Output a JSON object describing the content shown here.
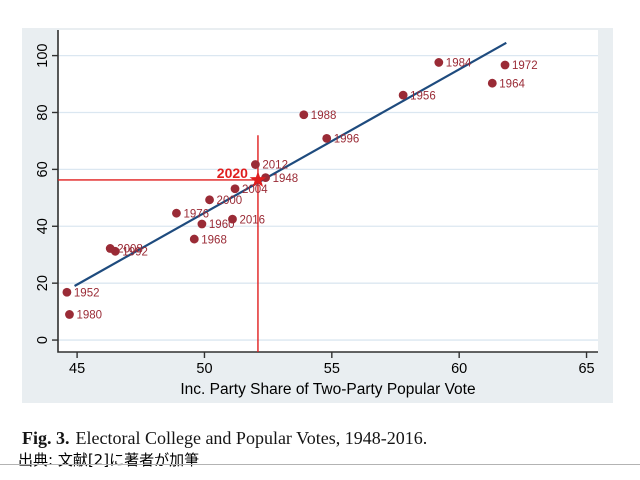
{
  "chart_data": {
    "type": "scatter",
    "title": "",
    "xlabel": "Inc. Party Share of Two-Party Popular Vote",
    "ylabel": "",
    "xlim": [
      44.25,
      65.45
    ],
    "ylim": [
      -4.2,
      109.0
    ],
    "xticks": [
      45,
      50,
      55,
      60,
      65
    ],
    "yticks": [
      0,
      20,
      40,
      60,
      80,
      100
    ],
    "grid": "horizontal-only",
    "legend": "none",
    "points": [
      {
        "label": "1948",
        "x": 52.4,
        "y": 57.1
      },
      {
        "label": "1952",
        "x": 44.6,
        "y": 16.8
      },
      {
        "label": "1956",
        "x": 57.8,
        "y": 86.1
      },
      {
        "label": "1960",
        "x": 49.9,
        "y": 40.8
      },
      {
        "label": "1964",
        "x": 61.3,
        "y": 90.3
      },
      {
        "label": "1968",
        "x": 49.6,
        "y": 35.5
      },
      {
        "label": "1972",
        "x": 61.8,
        "y": 96.7
      },
      {
        "label": "1976",
        "x": 48.9,
        "y": 44.6
      },
      {
        "label": "1980",
        "x": 44.7,
        "y": 9.0
      },
      {
        "label": "1984",
        "x": 59.2,
        "y": 97.6
      },
      {
        "label": "1988",
        "x": 53.9,
        "y": 79.2
      },
      {
        "label": "1992",
        "x": 46.5,
        "y": 31.2
      },
      {
        "label": "1996",
        "x": 54.8,
        "y": 70.9
      },
      {
        "label": "2000",
        "x": 50.2,
        "y": 49.3
      },
      {
        "label": "2004",
        "x": 51.2,
        "y": 53.2
      },
      {
        "label": "2008",
        "x": 46.3,
        "y": 32.2
      },
      {
        "label": "2012",
        "x": 52.0,
        "y": 61.7
      },
      {
        "label": "2016",
        "x": 51.1,
        "y": 42.5
      }
    ],
    "fit_line": {
      "x1": 44.9,
      "y1": 19.0,
      "x2": 61.85,
      "y2": 104.5
    },
    "highlight": {
      "label": "2020",
      "x": 52.1,
      "y": 56.3,
      "marker": "star",
      "vline_top": 72.0,
      "vline_bottom": -4.2,
      "hline_left": 44.25
    },
    "colors": {
      "point": "#9a2b36",
      "point_label": "#9a2b36",
      "fit_line": "#1e4b7e",
      "highlight": "#e01f1f",
      "grid": "#dbe7f1",
      "axis": "#303030",
      "figure_bg": "#e9eef1",
      "plot_bg": "#ffffff",
      "tick_label": "#000000"
    }
  },
  "caption": {
    "fig_label": "Fig. 3.",
    "text": "Electoral College and Popular Votes, 1948-2016.",
    "source_note": "出典: 文献[2]に著者が加筆"
  }
}
